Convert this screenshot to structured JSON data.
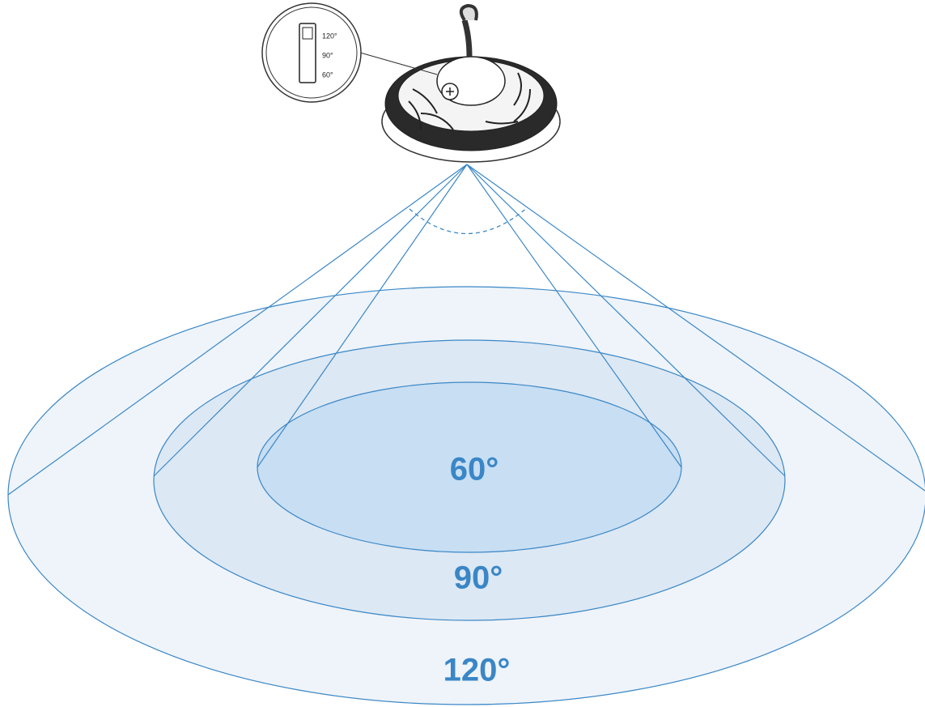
{
  "inset": {
    "labels": [
      "120°",
      "90°",
      "60°"
    ]
  },
  "beams": [
    {
      "label": "60°"
    },
    {
      "label": "90°"
    },
    {
      "label": "120°"
    }
  ]
}
